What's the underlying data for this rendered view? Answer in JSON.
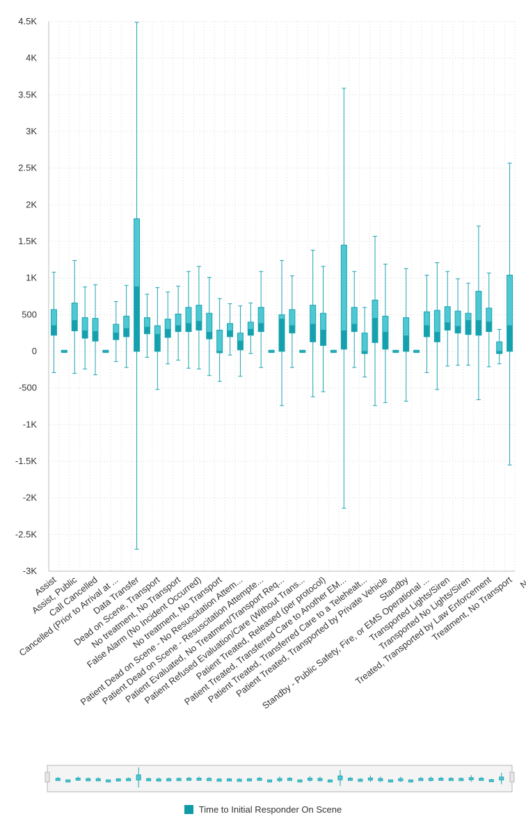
{
  "colors": {
    "box_fill": "#4ec8d2",
    "box_stroke": "#1aa3b0",
    "box_lower_fill": "#15a0ad",
    "whisker": "#1aa3b0",
    "grid": "#d9d9d9",
    "axis": "#bbbbbb",
    "legend_swatch": "#0e9aa7",
    "navigator_bg": "#f4f4f4",
    "navigator_border": "#b5b5b5"
  },
  "legend": {
    "label": "Time to Initial Responder On Scene"
  },
  "chart_data": {
    "type": "boxplot",
    "y_ticks": [
      "-3K",
      "-2.5K",
      "-2K",
      "-1.5K",
      "-1K",
      "-500",
      "0",
      "500",
      "1K",
      "1.5K",
      "2K",
      "2.5K",
      "3K",
      "3.5K",
      "4K",
      "4.5K"
    ],
    "ylim": [
      -3000,
      4500
    ],
    "grid": true,
    "legend_position": "bottom",
    "series": [
      {
        "name": "Time to Initial Responder On Scene"
      }
    ],
    "categories": [
      "Assist",
      "Assist, Public",
      "Call Cancelled",
      "Cancelled (Prior to Arrival at ...",
      "Data Transfer",
      "Dead on Scene, Transport",
      "No treatment, No Transport",
      "False Alarm (No Incident Occurred)",
      "No treatment, No Transport",
      "Patient Dead on Scene - No Resuscitation Attem...",
      "Patient Dead on Scene - Resuscitation Attempte...",
      "Patient Evaluated, No Treatment/Transport Req...",
      "Patient Refused Evaluation/Care (Without Trans...",
      "Patient Treated, Released (per protocol)",
      "Patient Treated, Transferred Care to Another EM...",
      "Patient Treated, Transferred Care to a Telehealt...",
      "Patient Treated, Transported by Private Vehicle",
      "Standby",
      "Standby - Public Safety, Fire, or EMS Operational ...",
      "Transported Lights/Siren",
      "Transported No Lights/Siren",
      "Treated, Transported by Law Enforcement",
      "Treatment, No Transport",
      "NA"
    ],
    "label_indices": [
      0,
      2,
      4,
      6,
      8,
      10,
      12,
      14,
      16,
      18,
      20,
      22,
      24,
      26,
      28,
      30,
      32,
      34,
      36,
      38,
      40,
      42,
      44,
      46
    ],
    "boxes": [
      {
        "min": -290,
        "q1": 220,
        "median": 350,
        "q3": 570,
        "max": 1080
      },
      {
        "min": -15,
        "q1": -15,
        "median": 0,
        "q3": 15,
        "max": 15
      },
      {
        "min": -300,
        "q1": 280,
        "median": 420,
        "q3": 660,
        "max": 1240
      },
      {
        "min": -240,
        "q1": 180,
        "median": 280,
        "q3": 460,
        "max": 880
      },
      {
        "min": -320,
        "q1": 140,
        "median": 270,
        "q3": 450,
        "max": 910
      },
      {
        "min": -15,
        "q1": -15,
        "median": 0,
        "q3": 15,
        "max": 15
      },
      {
        "min": -140,
        "q1": 160,
        "median": 250,
        "q3": 370,
        "max": 680
      },
      {
        "min": -220,
        "q1": 200,
        "median": 310,
        "q3": 480,
        "max": 900
      },
      {
        "min": -2700,
        "q1": 0,
        "median": 880,
        "q3": 1810,
        "max": 4490
      },
      {
        "min": -80,
        "q1": 240,
        "median": 330,
        "q3": 460,
        "max": 780
      },
      {
        "min": -520,
        "q1": 0,
        "median": 230,
        "q3": 350,
        "max": 870
      },
      {
        "min": -170,
        "q1": 190,
        "median": 300,
        "q3": 440,
        "max": 810
      },
      {
        "min": -120,
        "q1": 270,
        "median": 350,
        "q3": 510,
        "max": 890
      },
      {
        "min": -230,
        "q1": 270,
        "median": 380,
        "q3": 600,
        "max": 1090
      },
      {
        "min": -240,
        "q1": 290,
        "median": 410,
        "q3": 630,
        "max": 1160
      },
      {
        "min": -330,
        "q1": 170,
        "median": 260,
        "q3": 520,
        "max": 1010
      },
      {
        "min": -410,
        "q1": -20,
        "median": 0,
        "q3": 290,
        "max": 720
      },
      {
        "min": -50,
        "q1": 200,
        "median": 280,
        "q3": 380,
        "max": 650
      },
      {
        "min": -340,
        "q1": 20,
        "median": 140,
        "q3": 250,
        "max": 620
      },
      {
        "min": -30,
        "q1": 220,
        "median": 300,
        "q3": 400,
        "max": 660
      },
      {
        "min": -220,
        "q1": 270,
        "median": 380,
        "q3": 600,
        "max": 1090
      },
      {
        "min": -15,
        "q1": -15,
        "median": 0,
        "q3": 15,
        "max": 15
      },
      {
        "min": -740,
        "q1": 0,
        "median": 440,
        "q3": 500,
        "max": 1240
      },
      {
        "min": -220,
        "q1": 250,
        "median": 350,
        "q3": 570,
        "max": 1030
      },
      {
        "min": -15,
        "q1": -15,
        "median": 0,
        "q3": 15,
        "max": 15
      },
      {
        "min": -620,
        "q1": 130,
        "median": 370,
        "q3": 630,
        "max": 1380
      },
      {
        "min": -550,
        "q1": 80,
        "median": 290,
        "q3": 520,
        "max": 1160
      },
      {
        "min": -15,
        "q1": -15,
        "median": 0,
        "q3": 15,
        "max": 15
      },
      {
        "min": -2140,
        "q1": 30,
        "median": 280,
        "q3": 1450,
        "max": 3590
      },
      {
        "min": -220,
        "q1": 270,
        "median": 370,
        "q3": 600,
        "max": 1090
      },
      {
        "min": -350,
        "q1": -30,
        "median": 0,
        "q3": 250,
        "max": 600
      },
      {
        "min": -740,
        "q1": 120,
        "median": 450,
        "q3": 700,
        "max": 1570
      },
      {
        "min": -700,
        "q1": 30,
        "median": 260,
        "q3": 480,
        "max": 1190
      },
      {
        "min": -15,
        "q1": -15,
        "median": 0,
        "q3": 15,
        "max": 15
      },
      {
        "min": -680,
        "q1": 0,
        "median": 210,
        "q3": 460,
        "max": 1130
      },
      {
        "min": -15,
        "q1": -15,
        "median": 0,
        "q3": 15,
        "max": 15
      },
      {
        "min": -290,
        "q1": 200,
        "median": 350,
        "q3": 540,
        "max": 1040
      },
      {
        "min": -520,
        "q1": 130,
        "median": 260,
        "q3": 560,
        "max": 1210
      },
      {
        "min": -200,
        "q1": 290,
        "median": 390,
        "q3": 610,
        "max": 1090
      },
      {
        "min": -190,
        "q1": 250,
        "median": 340,
        "q3": 550,
        "max": 990
      },
      {
        "min": -190,
        "q1": 230,
        "median": 420,
        "q3": 520,
        "max": 930
      },
      {
        "min": -660,
        "q1": 220,
        "median": 420,
        "q3": 820,
        "max": 1710
      },
      {
        "min": -210,
        "q1": 270,
        "median": 400,
        "q3": 590,
        "max": 1070
      },
      {
        "min": -170,
        "q1": -30,
        "median": 0,
        "q3": 130,
        "max": 300
      },
      {
        "min": -1550,
        "q1": 0,
        "median": 350,
        "q3": 1040,
        "max": 2570
      }
    ]
  }
}
